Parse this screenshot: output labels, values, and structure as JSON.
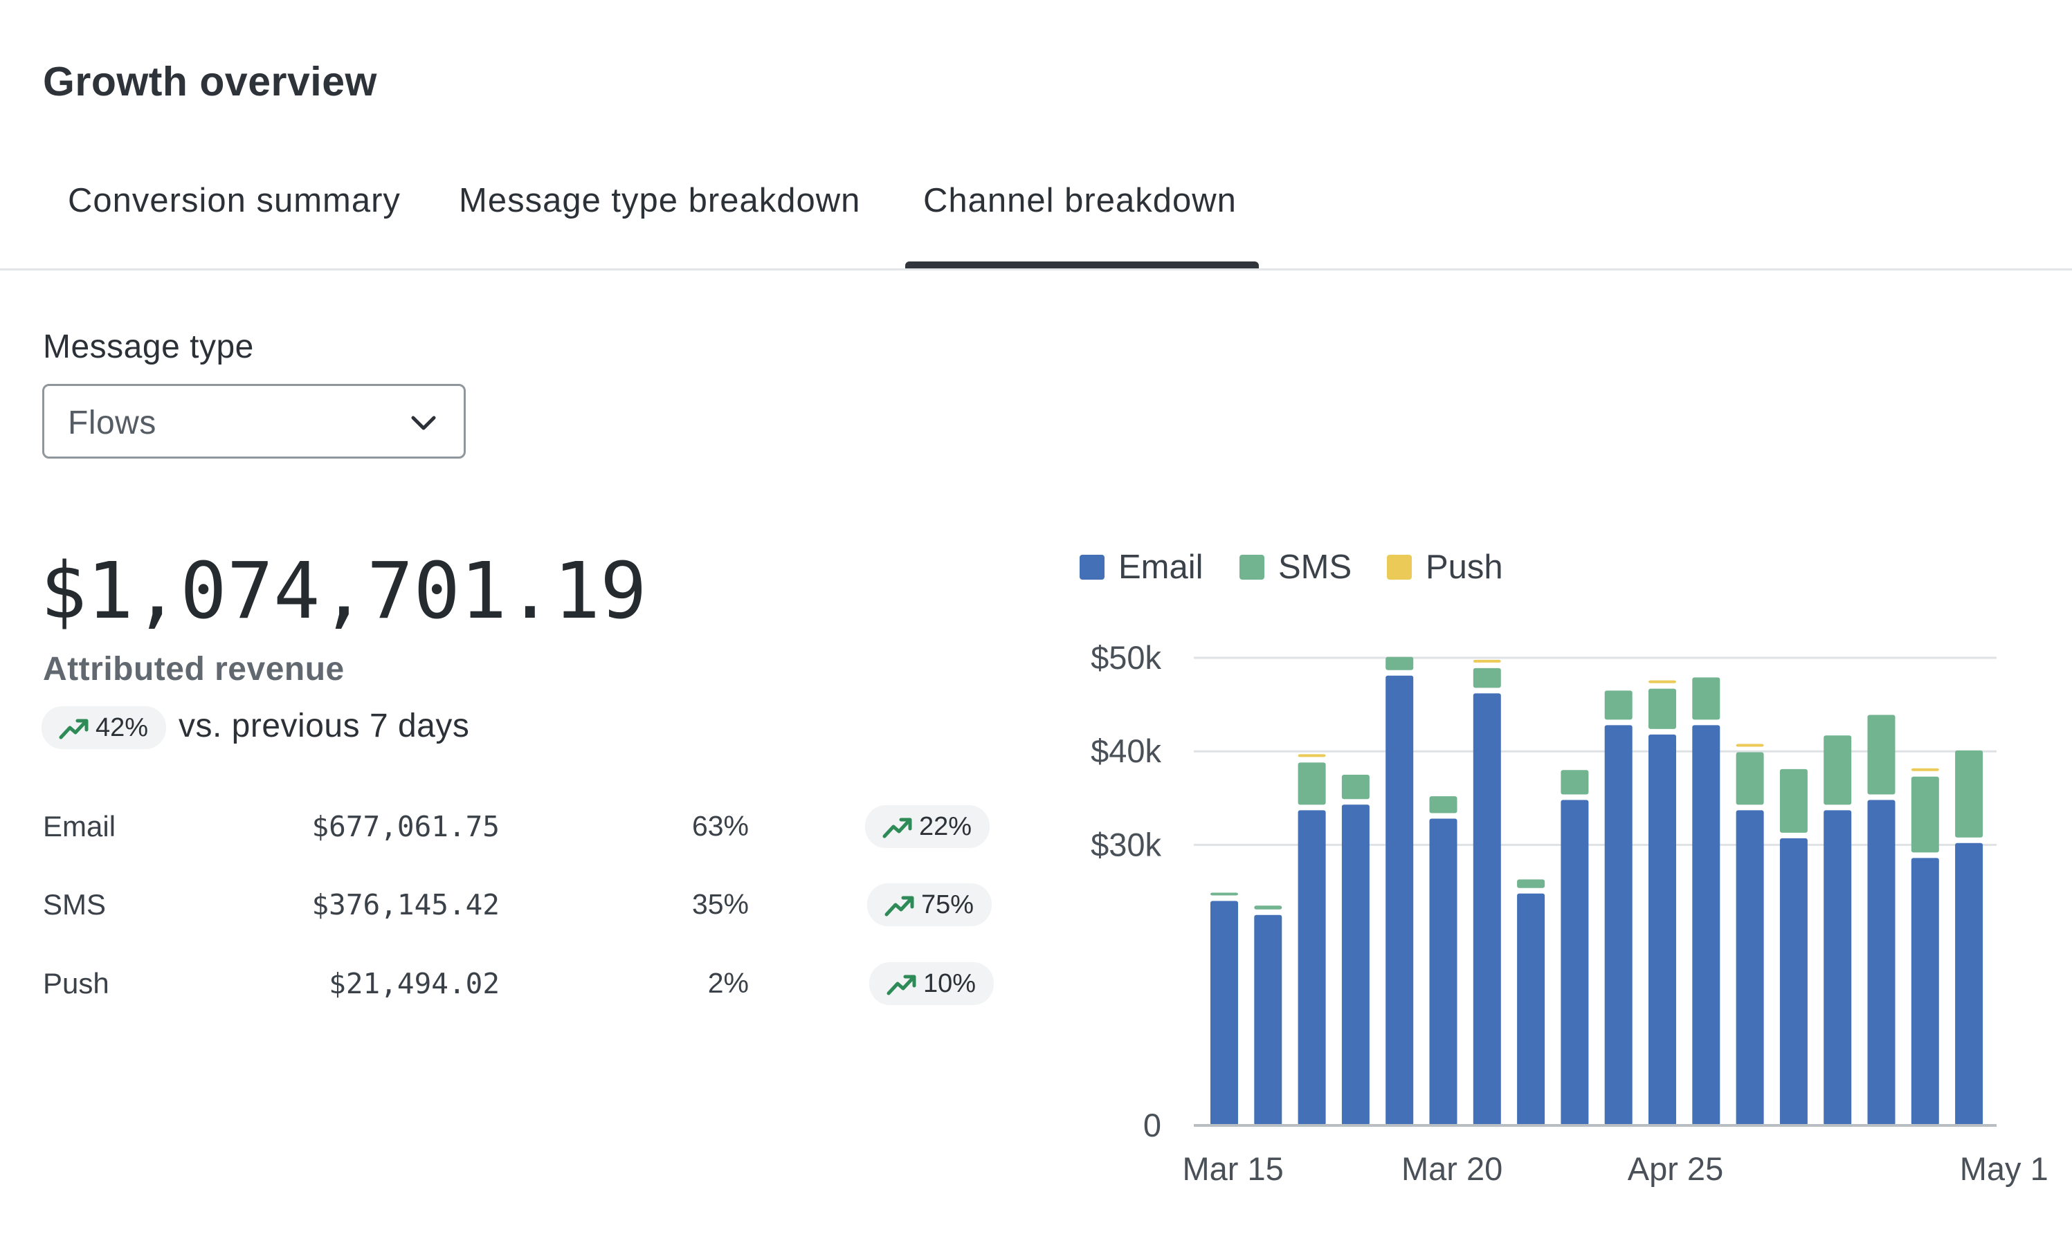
{
  "header": {
    "title": "Growth overview"
  },
  "tabs": [
    {
      "label": "Conversion summary",
      "active": false
    },
    {
      "label": "Message type breakdown",
      "active": false
    },
    {
      "label": "Channel breakdown",
      "active": true
    }
  ],
  "filter": {
    "label": "Message type",
    "value": "Flows",
    "icon": "chevron-down-icon"
  },
  "summary": {
    "total": "$1,074,701.19",
    "label": "Attributed revenue",
    "change": "42%",
    "change_icon": "trending-up-icon",
    "comparison": "vs. previous 7 days"
  },
  "channels": [
    {
      "name": "Email",
      "revenue": "$677,061.75",
      "share": "63%",
      "change": "22%"
    },
    {
      "name": "SMS",
      "revenue": "$376,145.42",
      "share": "35%",
      "change": "75%"
    },
    {
      "name": "Push",
      "revenue": "$21,494.02",
      "share": "2%",
      "change": "10%"
    }
  ],
  "colors": {
    "email": "#4470b7",
    "sms": "#71b48f",
    "push": "#ecca58",
    "trend": "#2e8b57"
  },
  "chart_data": {
    "type": "bar",
    "stacked": true,
    "y_tick_labels": [
      "0",
      "$30k",
      "$40k",
      "$50k"
    ],
    "y_ticks": [
      0,
      30000,
      40000,
      50000
    ],
    "ylim": [
      0,
      50000
    ],
    "y_baseline_value": 0,
    "x_tick_labels": [
      {
        "label": "Mar 15",
        "index": 0.2
      },
      {
        "label": "Mar 20",
        "index": 5.2
      },
      {
        "label": "Apr 25",
        "index": 10.3
      },
      {
        "label": "May 1",
        "index": 17.8
      }
    ],
    "legend": [
      "Email",
      "SMS",
      "Push"
    ],
    "legend_position": "top-left",
    "grid": true,
    "series": [
      {
        "name": "Email",
        "values": [
          24000,
          22500,
          33700,
          34300,
          48100,
          32800,
          46200,
          24800,
          34800,
          42800,
          41800,
          42800,
          33700,
          30700,
          33700,
          34800,
          28600,
          30200
        ]
      },
      {
        "name": "SMS",
        "values": [
          800,
          1000,
          5100,
          3200,
          2000,
          2400,
          2700,
          1500,
          3200,
          3700,
          4900,
          5100,
          6200,
          7400,
          8000,
          9100,
          8700,
          9900
        ]
      },
      {
        "name": "Push",
        "values": [
          0,
          0,
          800,
          0,
          0,
          0,
          700,
          0,
          0,
          0,
          800,
          0,
          800,
          0,
          0,
          0,
          700,
          0
        ]
      }
    ]
  }
}
